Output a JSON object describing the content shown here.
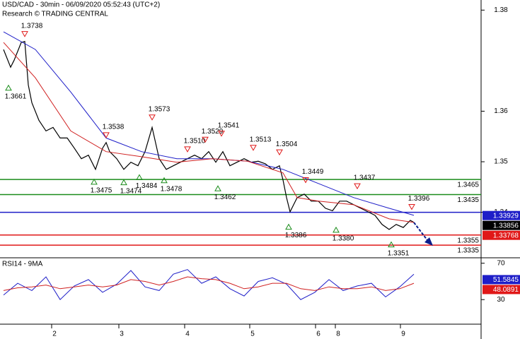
{
  "chart_data": [
    {
      "type": "line",
      "title": "USD/CAD - 30min - 06/09/2020 05:52:43 (UTC+2)",
      "subtitle": "Research © TRADING CENTRAL",
      "xlim": [
        0,
        680
      ],
      "ylim": [
        1.331,
        1.382
      ],
      "yticks": [
        1.34,
        1.35,
        1.36,
        1.38
      ],
      "series": [
        {
          "color": "#000000",
          "x": [
            5,
            15,
            20,
            30,
            35,
            40,
            45,
            55,
            65,
            75,
            85,
            95,
            105,
            115,
            125,
            135,
            145,
            150,
            155,
            165,
            175,
            185,
            195,
            205,
            215,
            225,
            235,
            245,
            255,
            265,
            275,
            285,
            295,
            305,
            315,
            325,
            335,
            345,
            355,
            365,
            375,
            385,
            395,
            400,
            405,
            410,
            415,
            420,
            430,
            440,
            450,
            460,
            470,
            480,
            490,
            500,
            510,
            520,
            530,
            540,
            550,
            560,
            570,
            580,
            585
          ],
          "values": [
            1.3722,
            1.3687,
            1.3701,
            1.3736,
            1.3738,
            1.3652,
            1.3617,
            1.3582,
            1.3561,
            1.3568,
            1.3547,
            1.3547,
            1.3527,
            1.3506,
            1.3513,
            1.3485,
            1.3527,
            1.3538,
            1.352,
            1.3506,
            1.3485,
            1.3499,
            1.3492,
            1.352,
            1.3568,
            1.3506,
            1.3485,
            1.3492,
            1.3499,
            1.3506,
            1.3513,
            1.3506,
            1.352,
            1.3499,
            1.352,
            1.3492,
            1.3499,
            1.3506,
            1.3499,
            1.3501,
            1.3496,
            1.3485,
            1.3492,
            1.3464,
            1.3429,
            1.3401,
            1.3415,
            1.3429,
            1.3436,
            1.3422,
            1.3422,
            1.3408,
            1.3403,
            1.3422,
            1.3422,
            1.3415,
            1.3408,
            1.3401,
            1.3394,
            1.3376,
            1.3366,
            1.3376,
            1.337,
            1.3384,
            1.338
          ]
        },
        {
          "color": "#1e1ec8",
          "x": [
            5,
            50,
            100,
            150,
            200,
            250,
            300,
            350,
            400,
            450,
            500,
            550,
            585
          ],
          "values": [
            1.3757,
            1.3722,
            1.3638,
            1.3547,
            1.352,
            1.3506,
            1.3506,
            1.3501,
            1.3485,
            1.3457,
            1.3429,
            1.3408,
            1.3394
          ]
        },
        {
          "color": "#d02020",
          "x": [
            5,
            50,
            100,
            150,
            200,
            250,
            300,
            350,
            400,
            420,
            450,
            500,
            550,
            585
          ],
          "values": [
            1.3736,
            1.3666,
            1.3561,
            1.352,
            1.351,
            1.3499,
            1.3506,
            1.3501,
            1.3478,
            1.3429,
            1.3422,
            1.3415,
            1.3387,
            1.338
          ]
        }
      ],
      "levels": [
        {
          "value": 1.3465,
          "color": "#1a8c1a"
        },
        {
          "value": 1.3435,
          "color": "#1a8c1a"
        },
        {
          "value": 1.34,
          "color": "#1e1ec8"
        },
        {
          "value": 1.3355,
          "color": "#e01818"
        },
        {
          "value": 1.3335,
          "color": "#e01818"
        }
      ],
      "annotations": [
        {
          "kind": "high",
          "x": 35,
          "value": 1.3738
        },
        {
          "kind": "low",
          "x": 12,
          "value": 1.3661
        },
        {
          "kind": "high",
          "x": 150,
          "value": 1.3538
        },
        {
          "kind": "high",
          "x": 215,
          "value": 1.3573
        },
        {
          "kind": "high",
          "x": 265,
          "value": {
            "value": 1.351,
            "label": "1.3510"
          }
        },
        {
          "kind": "high",
          "x": 290,
          "value": 1.3529
        },
        {
          "kind": "high",
          "x": 313,
          "value": 1.3541
        },
        {
          "kind": "high",
          "x": 358,
          "value": 1.3513
        },
        {
          "kind": "high",
          "x": 395,
          "value": 1.3504
        },
        {
          "kind": "high",
          "x": 432,
          "value": 1.3449
        },
        {
          "kind": "high",
          "x": 505,
          "value": 1.3437
        },
        {
          "kind": "high",
          "x": 582,
          "value": 1.3396
        },
        {
          "kind": "low",
          "x": 133,
          "value": 1.3475
        },
        {
          "kind": "low",
          "x": 175,
          "value": 1.3474
        },
        {
          "kind": "low",
          "x": 197,
          "value": 1.3484
        },
        {
          "kind": "low",
          "x": 232,
          "value": 1.3478
        },
        {
          "kind": "low",
          "x": 308,
          "value": 1.3462
        },
        {
          "kind": "low",
          "x": 408,
          "value": 1.3386
        },
        {
          "kind": "low",
          "x": 475,
          "value": {
            "value": 1.338,
            "label": "1.3380"
          }
        },
        {
          "kind": "low",
          "x": 553,
          "value": 1.3351
        }
      ],
      "last_values": [
        {
          "value": 1.33929,
          "color": "#1e1ec8"
        },
        {
          "value": 1.33856,
          "color": "#000000"
        },
        {
          "value": 1.33768,
          "color": "#e01818"
        }
      ]
    },
    {
      "type": "line",
      "title": "RSI14 - 9MA",
      "xlim": [
        0,
        680
      ],
      "ylim": [
        3,
        76
      ],
      "yticks": [
        30,
        70
      ],
      "xticks": [
        {
          "value": 73,
          "label": "2"
        },
        {
          "value": 168,
          "label": "3"
        },
        {
          "value": 261,
          "label": "4"
        },
        {
          "value": 353,
          "label": "5"
        },
        {
          "value": 446,
          "label": "6"
        },
        {
          "value": 474,
          "label": "8"
        },
        {
          "value": 566,
          "label": "9"
        }
      ],
      "series": [
        {
          "color": "#1e1ec8",
          "x": [
            5,
            25,
            45,
            65,
            85,
            105,
            125,
            145,
            165,
            185,
            205,
            225,
            245,
            265,
            285,
            305,
            325,
            345,
            365,
            385,
            405,
            425,
            445,
            465,
            485,
            505,
            525,
            545,
            565,
            585
          ],
          "values": [
            35,
            48,
            40,
            55,
            30,
            45,
            52,
            38,
            47,
            62,
            44,
            40,
            58,
            63,
            48,
            55,
            42,
            34,
            50,
            54,
            47,
            30,
            38,
            52,
            40,
            45,
            48,
            33,
            44,
            58
          ]
        },
        {
          "color": "#d02020",
          "x": [
            5,
            25,
            45,
            65,
            85,
            105,
            125,
            145,
            165,
            185,
            205,
            225,
            245,
            265,
            285,
            305,
            325,
            345,
            365,
            385,
            405,
            425,
            445,
            465,
            485,
            505,
            525,
            545,
            565,
            585
          ],
          "values": [
            40,
            43,
            44,
            46,
            42,
            44,
            46,
            44,
            46,
            52,
            50,
            46,
            50,
            55,
            53,
            52,
            48,
            42,
            44,
            48,
            48,
            42,
            40,
            44,
            42,
            42,
            44,
            40,
            42,
            48
          ]
        }
      ],
      "last_values": [
        {
          "value": 51.5845,
          "color": "#1e1ec8"
        },
        {
          "value": 48.0891,
          "color": "#e01818"
        }
      ]
    }
  ]
}
